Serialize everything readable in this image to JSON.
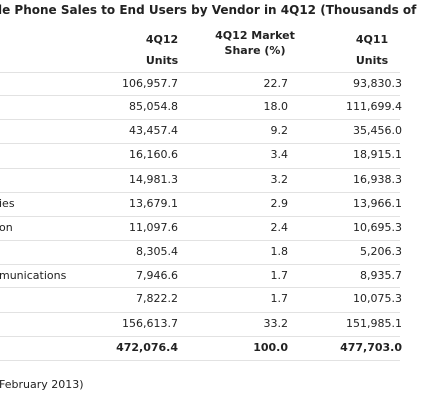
{
  "header": {
    "title": "le Phone Sales to End Users by Vendor in 4Q12 (Thousands of"
  },
  "table": {
    "columns": [
      {
        "top": "4Q12",
        "bottom": "Units"
      },
      {
        "top": "4Q12 Market",
        "bottom": "Share (%)"
      },
      {
        "top": "4Q11",
        "bottom": "Units"
      }
    ],
    "rows": [
      [
        null,
        "106,957.7",
        "22.7",
        "93,830.3"
      ],
      [
        null,
        "85,054.8",
        "18.0",
        "111,699.4"
      ],
      [
        null,
        "43,457.4",
        "9.2",
        "35,456.0"
      ],
      [
        null,
        "16,160.6",
        "3.4",
        "18,915.1"
      ],
      [
        null,
        "14,981.3",
        "3.2",
        "16,938.3"
      ],
      [
        "ies",
        "13,679.1",
        "2.9",
        "13,966.1"
      ],
      [
        "on",
        "11,097.6",
        "2.4",
        "10,695.3"
      ],
      [
        null,
        "8,305.4",
        "1.8",
        "5,206.3"
      ],
      [
        "munications",
        "7,946.6",
        "1.7",
        "8,935.7"
      ],
      [
        null,
        "7,822.2",
        "1.7",
        "10,075.3"
      ],
      [
        null,
        "156,613.7",
        "33.2",
        "151,985.1"
      ],
      [
        null,
        "472,076.4",
        "100.0",
        "477,703.0"
      ]
    ]
  },
  "footer": {
    "note": "February 2013)"
  }
}
